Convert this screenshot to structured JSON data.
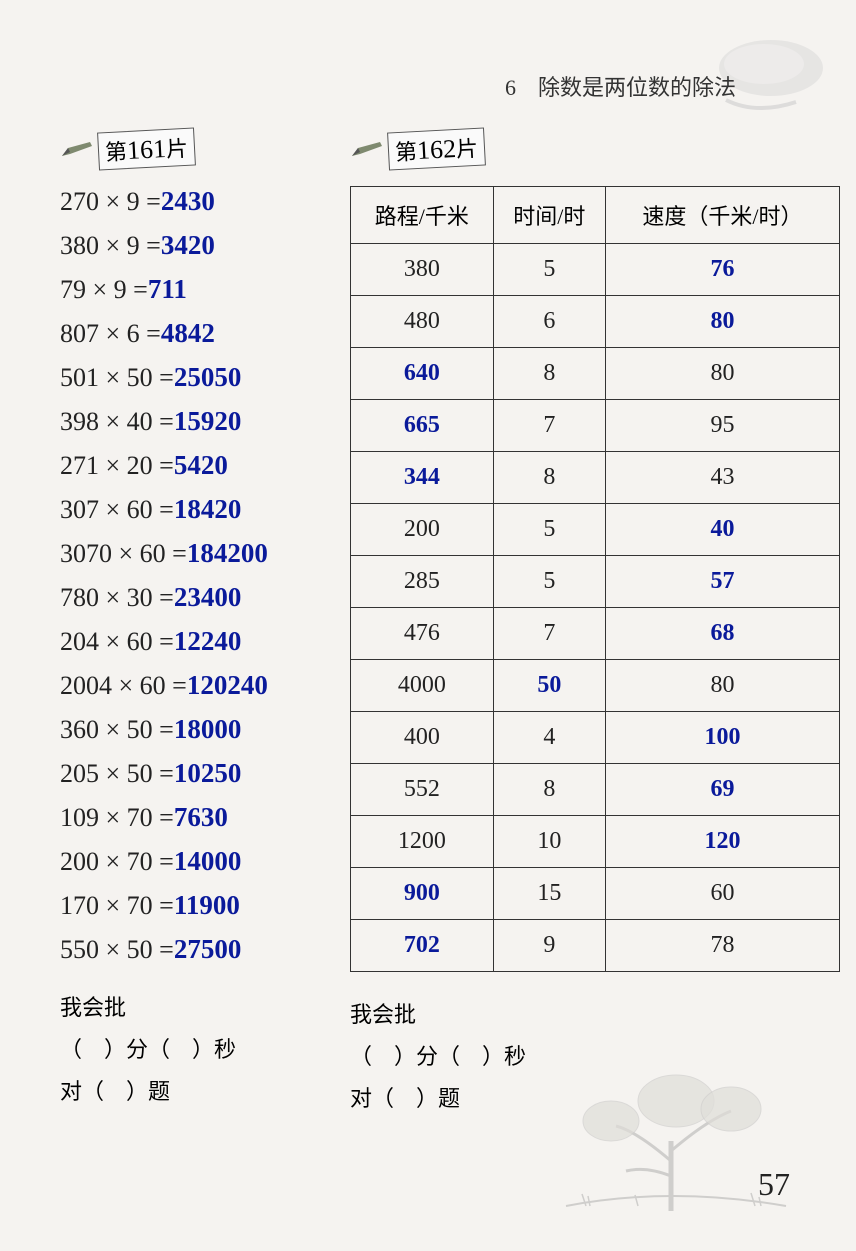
{
  "chapter": "6　除数是两位数的除法",
  "page_number": "57",
  "colors": {
    "answer": "#0a1a9a",
    "text": "#222222",
    "border": "#333333",
    "background": "#f5f3f0"
  },
  "section161": {
    "tag_prefix": "第",
    "tag_number": "161",
    "tag_suffix": "片",
    "equations": [
      {
        "lhs": "270 × 9 =",
        "ans": "2430"
      },
      {
        "lhs": "380 × 9 =",
        "ans": "3420"
      },
      {
        "lhs": "79 × 9 =",
        "ans": "711"
      },
      {
        "lhs": "807 × 6 =",
        "ans": "4842"
      },
      {
        "lhs": "501 × 50 =",
        "ans": "25050"
      },
      {
        "lhs": "398 × 40 =",
        "ans": "15920"
      },
      {
        "lhs": "271 × 20 =",
        "ans": "5420"
      },
      {
        "lhs": "307 × 60 =",
        "ans": "18420"
      },
      {
        "lhs": "3070 × 60 =",
        "ans": "184200"
      },
      {
        "lhs": "780 × 30 =",
        "ans": "23400"
      },
      {
        "lhs": "204 × 60 =",
        "ans": "12240"
      },
      {
        "lhs": "2004 × 60 =",
        "ans": "120240"
      },
      {
        "lhs": "360 × 50 =",
        "ans": "18000"
      },
      {
        "lhs": "205 × 50 =",
        "ans": "10250"
      },
      {
        "lhs": "109 × 70 =",
        "ans": "7630"
      },
      {
        "lhs": "200 × 70 =",
        "ans": "14000"
      },
      {
        "lhs": "170 × 70 =",
        "ans": "11900"
      },
      {
        "lhs": "550 × 50 =",
        "ans": "27500"
      }
    ]
  },
  "section162": {
    "tag_prefix": "第",
    "tag_number": "162",
    "tag_suffix": "片",
    "headers": [
      "路程/千米",
      "时间/时",
      "速度（千米/时）"
    ],
    "rows": [
      [
        {
          "v": "380",
          "f": false
        },
        {
          "v": "5",
          "f": false
        },
        {
          "v": "76",
          "f": true
        }
      ],
      [
        {
          "v": "480",
          "f": false
        },
        {
          "v": "6",
          "f": false
        },
        {
          "v": "80",
          "f": true
        }
      ],
      [
        {
          "v": "640",
          "f": true
        },
        {
          "v": "8",
          "f": false
        },
        {
          "v": "80",
          "f": false
        }
      ],
      [
        {
          "v": "665",
          "f": true
        },
        {
          "v": "7",
          "f": false
        },
        {
          "v": "95",
          "f": false
        }
      ],
      [
        {
          "v": "344",
          "f": true
        },
        {
          "v": "8",
          "f": false
        },
        {
          "v": "43",
          "f": false
        }
      ],
      [
        {
          "v": "200",
          "f": false
        },
        {
          "v": "5",
          "f": false
        },
        {
          "v": "40",
          "f": true
        }
      ],
      [
        {
          "v": "285",
          "f": false
        },
        {
          "v": "5",
          "f": false
        },
        {
          "v": "57",
          "f": true
        }
      ],
      [
        {
          "v": "476",
          "f": false
        },
        {
          "v": "7",
          "f": false
        },
        {
          "v": "68",
          "f": true
        }
      ],
      [
        {
          "v": "4000",
          "f": false
        },
        {
          "v": "50",
          "f": true
        },
        {
          "v": "80",
          "f": false
        }
      ],
      [
        {
          "v": "400",
          "f": false
        },
        {
          "v": "4",
          "f": false
        },
        {
          "v": "100",
          "f": true
        }
      ],
      [
        {
          "v": "552",
          "f": false
        },
        {
          "v": "8",
          "f": false
        },
        {
          "v": "69",
          "f": true
        }
      ],
      [
        {
          "v": "1200",
          "f": false
        },
        {
          "v": "10",
          "f": false
        },
        {
          "v": "120",
          "f": true
        }
      ],
      [
        {
          "v": "900",
          "f": true
        },
        {
          "v": "15",
          "f": false
        },
        {
          "v": "60",
          "f": false
        }
      ],
      [
        {
          "v": "702",
          "f": true
        },
        {
          "v": "9",
          "f": false
        },
        {
          "v": "78",
          "f": false
        }
      ]
    ]
  },
  "grading": {
    "title": "我会批",
    "line1_a": "（　）分（　）秒",
    "line2_a": "对（　）题",
    "line1_b": "（　）分（　）秒",
    "line2_b": "对（　）题"
  }
}
